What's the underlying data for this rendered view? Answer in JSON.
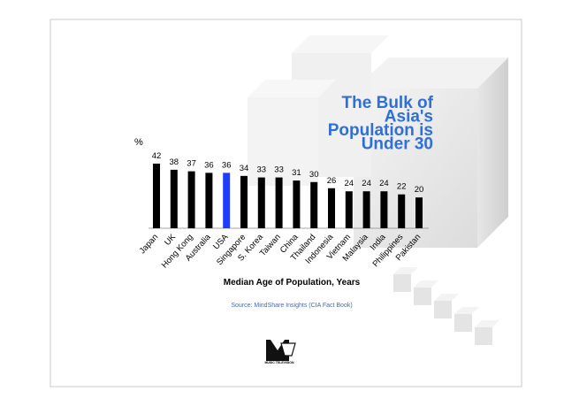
{
  "chart_data": {
    "type": "bar",
    "title": [
      "The Bulk of",
      "Asia's",
      "Population is",
      "Under 30"
    ],
    "y_label": "%",
    "x_label": "Median Age of Population, Years",
    "source": "Source: MindShare Insights (CIA Fact Book)",
    "logo": "MUSIC TELEVISION",
    "categories": [
      "Japan",
      "UK",
      "Hong Kong",
      "Australia",
      "USA",
      "Singapore",
      "S. Korea",
      "Taiwan",
      "China",
      "Thailand",
      "Indonesia",
      "Vietnam",
      "Malaysia",
      "India",
      "Philippines",
      "Pakistan"
    ],
    "values": [
      42,
      38,
      37,
      36,
      36,
      34,
      33,
      33,
      31,
      30,
      26,
      24,
      24,
      24,
      22,
      20
    ],
    "colors": [
      "#000000",
      "#000000",
      "#000000",
      "#000000",
      "#1f3cff",
      "#000000",
      "#000000",
      "#000000",
      "#000000",
      "#000000",
      "#000000",
      "#000000",
      "#000000",
      "#000000",
      "#000000",
      "#000000"
    ],
    "title_color": "#2f6fd8"
  }
}
